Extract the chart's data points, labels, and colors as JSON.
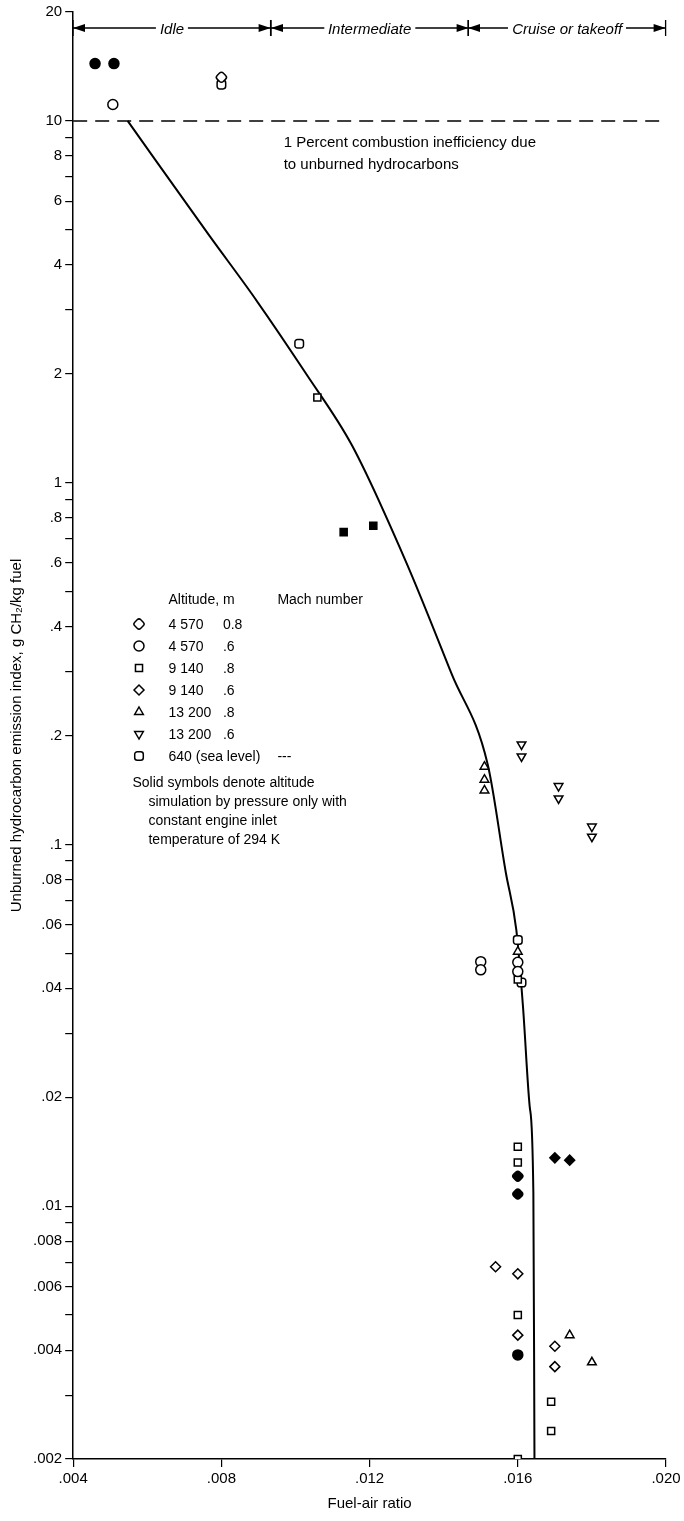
{
  "chart_data": {
    "type": "scatter",
    "xlabel": "Fuel-air ratio",
    "ylabel": "Unburned hydrocarbon emission index, g CH₂/kg fuel",
    "legend_title": "Altitude, m\tMach number",
    "legend": "left",
    "log": "y",
    "xlim": [
      0.004,
      0.02
    ],
    "xticks": [
      {
        "value": 0.004,
        "label": ".004"
      },
      {
        "value": 0.008,
        "label": ".008"
      },
      {
        "value": 0.012,
        "label": ".012"
      },
      {
        "value": 0.016,
        "label": ".016"
      },
      {
        "value": 0.02,
        "label": ".020"
      }
    ],
    "ylim": [
      0.002,
      20
    ],
    "yticks": [
      {
        "value": 0.002,
        "label": ".002"
      },
      {
        "value": 0.003,
        "label": null
      },
      {
        "value": 0.004,
        "label": ".004"
      },
      {
        "value": 0.005,
        "label": null
      },
      {
        "value": 0.006,
        "label": ".006"
      },
      {
        "value": 0.007,
        "label": null
      },
      {
        "value": 0.008,
        "label": ".008"
      },
      {
        "value": 0.009,
        "label": null
      },
      {
        "value": 0.01,
        "label": ".01"
      },
      {
        "value": 0.02,
        "label": ".02"
      },
      {
        "value": 0.03,
        "label": null
      },
      {
        "value": 0.04,
        "label": ".04"
      },
      {
        "value": 0.05,
        "label": null
      },
      {
        "value": 0.06,
        "label": ".06"
      },
      {
        "value": 0.07,
        "label": null
      },
      {
        "value": 0.08,
        "label": ".08"
      },
      {
        "value": 0.09,
        "label": null
      },
      {
        "value": 0.1,
        "label": ".1"
      },
      {
        "value": 0.2,
        "label": ".2"
      },
      {
        "value": 0.3,
        "label": null
      },
      {
        "value": 0.4,
        "label": ".4"
      },
      {
        "value": 0.5,
        "label": null
      },
      {
        "value": 0.6,
        "label": ".6"
      },
      {
        "value": 0.7,
        "label": null
      },
      {
        "value": 0.8,
        "label": ".8"
      },
      {
        "value": 0.9,
        "label": null
      },
      1,
      2,
      {
        "value": 3,
        "label": null
      },
      4,
      {
        "value": 5,
        "label": null
      },
      6,
      {
        "value": 7,
        "label": null
      },
      8,
      {
        "value": 9,
        "label": null
      },
      10,
      20
    ],
    "ref_lines": [
      {
        "axis": "y",
        "value": 10,
        "label": "1 Percent combustion inefficiency due to unburned hydrocarbons",
        "line_style": "dashed"
      }
    ],
    "annotations": [
      "Idle",
      "Intermediate",
      "Cruise or takeoff",
      "Solid symbols denote altitude simulation by pressure only with constant engine inlet temperature of 294 K"
    ],
    "series": [
      {
        "name": "4 570\t0.8",
        "color": "#000000",
        "marker": "flag-circle",
        "x": [
          0.008
        ],
        "values": [
          13.2
        ]
      },
      {
        "name": "4 570\t.6",
        "color": "#000000",
        "marker": "circle",
        "x": [
          0.00507,
          0.015,
          0.015,
          0.016,
          0.016
        ],
        "values": [
          11.1,
          0.0474,
          0.045,
          0.0472,
          0.0445
        ]
      },
      {
        "name": "9 140\t.8",
        "color": "#000000",
        "marker": "square",
        "x": [
          0.01059,
          0.016,
          0.016,
          0.016,
          0.016,
          0.0169,
          0.0169,
          0.016
        ],
        "values": [
          1.72,
          0.0423,
          0.0146,
          0.0132,
          0.005,
          0.00288,
          0.00239,
          0.002
        ]
      },
      {
        "name": "9 140\t.6",
        "color": "#000000",
        "marker": "diamond",
        "x": [
          0.0154,
          0.016,
          0.016,
          0.017,
          0.017
        ],
        "values": [
          0.0068,
          0.0065,
          0.0044,
          0.0041,
          0.0036
        ]
      },
      {
        "name": "13 200\t.8",
        "color": "#000000",
        "marker": "triangle",
        "x": [
          0.0151,
          0.0151,
          0.0151,
          0.016,
          0.0174,
          0.018
        ],
        "values": [
          0.164,
          0.151,
          0.141,
          0.0505,
          0.0044,
          0.0037
        ]
      },
      {
        "name": "13 200\t.6",
        "color": "#000000",
        "marker": "triangle-down",
        "x": [
          0.0161,
          0.0161,
          0.0171,
          0.0171,
          0.018,
          0.018
        ],
        "values": [
          0.189,
          0.175,
          0.145,
          0.134,
          0.112,
          0.105
        ]
      },
      {
        "name": "640 (sea level)\t---",
        "color": "#000000",
        "marker": "flat-circle",
        "x": [
          0.008,
          0.0101,
          0.016,
          0.0161
        ],
        "values": [
          12.6,
          2.42,
          0.0544,
          0.0415
        ]
      },
      {
        "color": "#000000",
        "marker": "flag-circle",
        "x": [
          0.016,
          0.016
        ],
        "values": [
          0.0121,
          0.0108
        ]
      },
      {
        "color": "#000000",
        "marker": "circle",
        "x": [
          0.00459,
          0.0051,
          0.016
        ],
        "values": [
          14.4,
          14.4,
          0.00388
        ]
      },
      {
        "color": "#000000",
        "marker": "square",
        "x": [
          0.0113,
          0.0121
        ],
        "values": [
          0.73,
          0.76
        ]
      },
      {
        "color": "#000000",
        "marker": "diamond",
        "x": [
          0.017,
          0.0174
        ],
        "values": [
          0.0136,
          0.0134
        ]
      },
      {
        "type": "line",
        "color": "#000000",
        "marker": "none",
        "x": [
          0.00547,
          0.00768,
          0.0089,
          0.0103,
          0.01152,
          0.01298,
          0.01422,
          0.01519,
          0.01568,
          0.01596,
          0.01614,
          0.01632,
          0.01642,
          0.01645
        ],
        "values": [
          10,
          4.81,
          3.24,
          1.99,
          1.27,
          0.605,
          0.295,
          0.166,
          0.0832,
          0.058,
          0.0356,
          0.0189,
          0.0109,
          0.002
        ]
      }
    ]
  }
}
